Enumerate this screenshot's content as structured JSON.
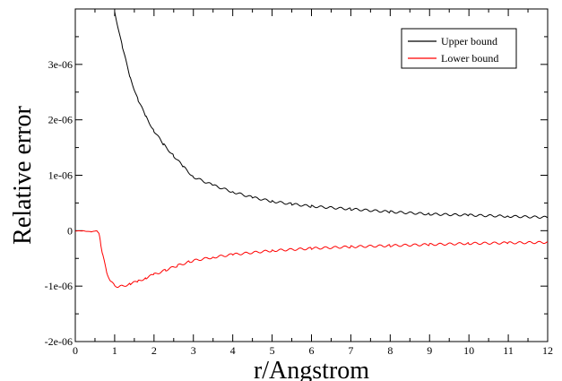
{
  "chart_data": {
    "type": "line",
    "title": "",
    "xlabel": "r/Angstrom",
    "ylabel": "Relative error",
    "xlim": [
      0,
      12
    ],
    "ylim": [
      -2e-06,
      4e-06
    ],
    "x_ticks": [
      0,
      1,
      2,
      3,
      4,
      5,
      6,
      7,
      8,
      9,
      10,
      11,
      12
    ],
    "x_tick_labels": [
      "0",
      "1",
      "2",
      "3",
      "4",
      "5",
      "6",
      "7",
      "8",
      "9",
      "10",
      "11",
      "12"
    ],
    "y_ticks": [
      -2e-06,
      -1e-06,
      0,
      1e-06,
      2e-06,
      3e-06
    ],
    "y_tick_labels": [
      "-2e-06",
      "-1e-06",
      "0",
      "1e-06",
      "2e-06",
      "3e-06"
    ],
    "grid": false,
    "legend_position": "top-right",
    "series": [
      {
        "name": "Upper bound",
        "color": "#000000",
        "x": [
          1.0,
          1.2,
          1.4,
          1.6,
          1.8,
          2.0,
          2.25,
          2.5,
          2.75,
          3.0,
          3.5,
          4.0,
          4.5,
          5.0,
          5.5,
          6.0,
          7.0,
          8.0,
          9.0,
          10.0,
          11.0,
          12.0
        ],
        "y": [
          3.95e-06,
          3.3e-06,
          2.75e-06,
          2.35e-06,
          2.05e-06,
          1.8e-06,
          1.55e-06,
          1.35e-06,
          1.15e-06,
          9.7e-07,
          8.2e-07,
          7e-07,
          6e-07,
          5.3e-07,
          4.8e-07,
          4.4e-07,
          3.9e-07,
          3.4e-07,
          3e-07,
          2.8e-07,
          2.6e-07,
          2.4e-07
        ]
      },
      {
        "name": "Lower bound",
        "color": "#ff0000",
        "x": [
          0.0,
          0.2,
          0.4,
          0.5,
          0.55,
          0.6,
          0.65,
          0.7,
          0.8,
          0.9,
          1.0,
          1.1,
          1.2,
          1.4,
          1.6,
          1.8,
          2.0,
          2.3,
          2.6,
          2.9,
          3.0,
          3.5,
          4.0,
          5.0,
          6.0,
          7.0,
          8.0,
          9.0,
          10.0,
          11.0,
          12.0
        ],
        "y": [
          -1e-08,
          0.0,
          -2e-08,
          -1e-08,
          0.0,
          -5e-08,
          -2.5e-07,
          -4.5e-07,
          -7.5e-07,
          -9.2e-07,
          -9.9e-07,
          -1.01e-06,
          -1e-06,
          -9.6e-07,
          -9.1e-07,
          -8.5e-07,
          -7.9e-07,
          -7.1e-07,
          -6.3e-07,
          -5.6e-07,
          -5.4e-07,
          -4.8e-07,
          -4.3e-07,
          -3.6e-07,
          -3.2e-07,
          -2.9e-07,
          -2.7e-07,
          -2.5e-07,
          -2.3e-07,
          -2.2e-07,
          -2.1e-07
        ]
      }
    ]
  }
}
